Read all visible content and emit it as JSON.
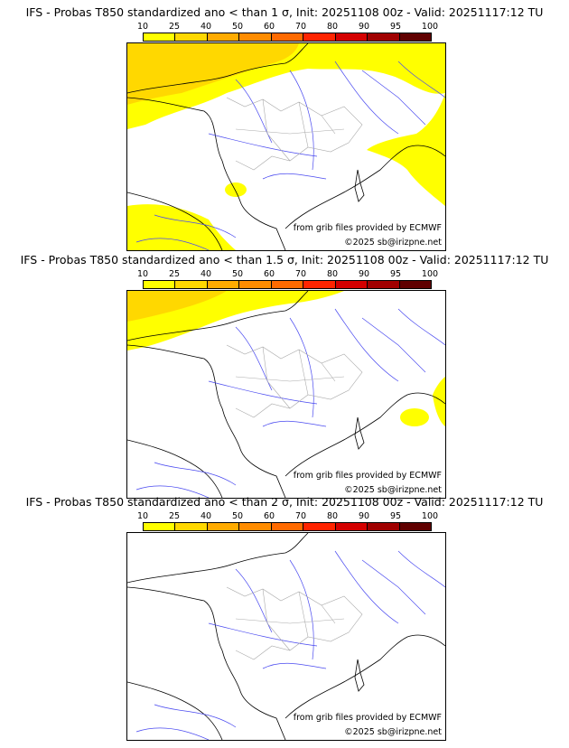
{
  "colorbar": {
    "ticks": [
      "10",
      "25",
      "40",
      "50",
      "60",
      "70",
      "80",
      "90",
      "95",
      "100"
    ],
    "colors": [
      "#ffff00",
      "#ffd800",
      "#ffab00",
      "#ff8c00",
      "#ff6a00",
      "#ff2400",
      "#d40000",
      "#a00000",
      "#600000"
    ]
  },
  "panels": [
    {
      "title": "IFS - Probas T850  standardized ano < than 1 σ, Init: 20251108 00z - Valid: 20251117:12 TU",
      "level": "high"
    },
    {
      "title": "IFS - Probas T850  standardized ano < than 1.5 σ, Init: 20251108 00z - Valid: 20251117:12 TU",
      "level": "mid"
    },
    {
      "title": "IFS - Probas T850  standardized ano < than 2 σ, Init: 20251108 00z - Valid: 20251117:12 TU",
      "level": "none"
    }
  ],
  "credits": {
    "source": "from grib files provided by ECMWF",
    "copyright": "©2025 sb@irizpne.net"
  }
}
